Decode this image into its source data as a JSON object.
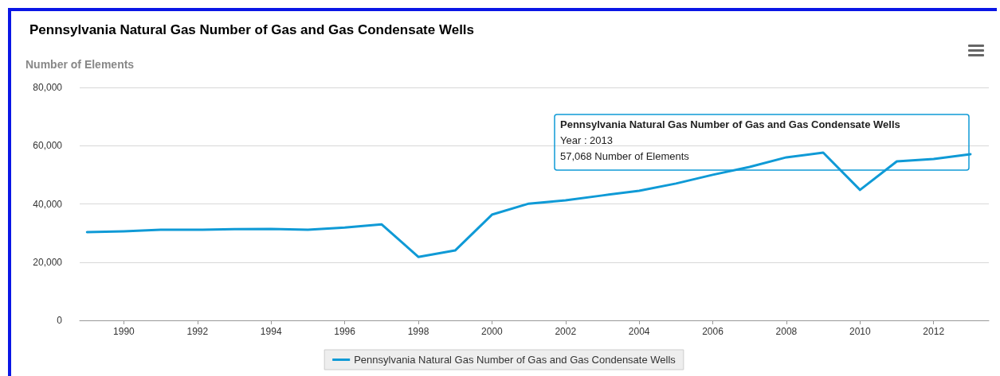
{
  "chart_data": {
    "type": "line",
    "title": "Pennsylvania Natural Gas Number of Gas and Gas Condensate Wells",
    "ylabel": "Number of Elements",
    "x": [
      1989,
      1990,
      1991,
      1992,
      1993,
      1994,
      1995,
      1996,
      1997,
      1998,
      1999,
      2000,
      2001,
      2002,
      2003,
      2004,
      2005,
      2006,
      2007,
      2008,
      2009,
      2010,
      2011,
      2012,
      2013
    ],
    "series": [
      {
        "name": "Pennsylvania Natural Gas Number of Gas and Gas Condensate Wells",
        "color": "#0f9ad6",
        "values": [
          30300,
          30600,
          31100,
          31100,
          31300,
          31400,
          31100,
          31900,
          33000,
          21800,
          24000,
          36300,
          40100,
          41200,
          42900,
          44500,
          47000,
          50000,
          52700,
          56000,
          57600,
          44800,
          54600,
          55400,
          57068
        ]
      }
    ],
    "xlim": [
      1988.8,
      2013.5
    ],
    "xticks": [
      1990,
      1992,
      1994,
      1996,
      1998,
      2000,
      2002,
      2004,
      2006,
      2008,
      2010,
      2012
    ],
    "ylim": [
      0,
      80000
    ],
    "yticks": [
      0,
      {
        "value": 20000,
        "label": "20,000"
      },
      {
        "value": 40000,
        "label": "40,000"
      },
      {
        "value": 60000,
        "label": "60,000"
      },
      {
        "value": 80000,
        "label": "80,000"
      }
    ],
    "grid": "y",
    "legend": "bottom",
    "marker": "none",
    "line_style": "solid",
    "annotations": [
      "Pennsylvania Natural Gas Number of Gas and Gas Condensate Wells\nYear : 2013\n57,068 Number of Elements"
    ]
  }
}
